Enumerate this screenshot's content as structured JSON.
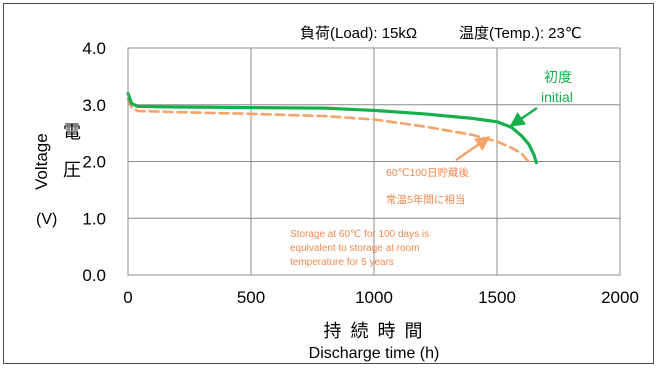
{
  "chart_data": {
    "type": "line",
    "conditions": {
      "load": "負荷(Load): 15kΩ",
      "temp": "温度(Temp.): 23℃"
    },
    "xlabel_jp": "持 続 時 間",
    "xlabel": "Discharge time (h)",
    "ylabel_en": "Voltage",
    "ylabel_jp_1": "電",
    "ylabel_jp_2": "圧",
    "ylabel_unit": "(V)",
    "xlim": [
      0,
      2000
    ],
    "ylim": [
      0,
      4
    ],
    "xticks": [
      "0",
      "500",
      "1000",
      "1500",
      "2000"
    ],
    "yticks": [
      "0.0",
      "1.0",
      "2.0",
      "3.0",
      "4.0"
    ],
    "xtick_values": [
      0,
      500,
      1000,
      1500,
      2000
    ],
    "ytick_values": [
      0,
      1,
      2,
      3,
      4
    ],
    "grid": true,
    "series": [
      {
        "name_jp": "初度",
        "name_en": "initial",
        "color": "#16b04b",
        "dashed": false,
        "points": [
          [
            0,
            3.2
          ],
          [
            15,
            3.02
          ],
          [
            40,
            2.97
          ],
          [
            200,
            2.96
          ],
          [
            500,
            2.95
          ],
          [
            800,
            2.94
          ],
          [
            1000,
            2.9
          ],
          [
            1200,
            2.84
          ],
          [
            1400,
            2.76
          ],
          [
            1500,
            2.7
          ],
          [
            1560,
            2.6
          ],
          [
            1600,
            2.45
          ],
          [
            1630,
            2.3
          ],
          [
            1650,
            2.12
          ],
          [
            1660,
            1.98
          ]
        ]
      },
      {
        "color": "#f4a46a",
        "dashed": true,
        "points": [
          [
            0,
            3.1
          ],
          [
            15,
            2.95
          ],
          [
            40,
            2.89
          ],
          [
            200,
            2.87
          ],
          [
            500,
            2.84
          ],
          [
            800,
            2.8
          ],
          [
            1000,
            2.74
          ],
          [
            1200,
            2.62
          ],
          [
            1400,
            2.47
          ],
          [
            1500,
            2.35
          ],
          [
            1560,
            2.24
          ],
          [
            1600,
            2.14
          ],
          [
            1620,
            2.04
          ],
          [
            1635,
            1.96
          ]
        ]
      }
    ],
    "annotations": {
      "aged_jp_1": "60℃100日貯蔵後",
      "aged_jp_2": "常温5年間に相当",
      "aged_en_1": "Storage at 60℃ for 100 days is",
      "aged_en_2": "equivalent to storage at room",
      "aged_en_3": "temperature for 5 years",
      "annotation_color": "#f08a50"
    }
  }
}
